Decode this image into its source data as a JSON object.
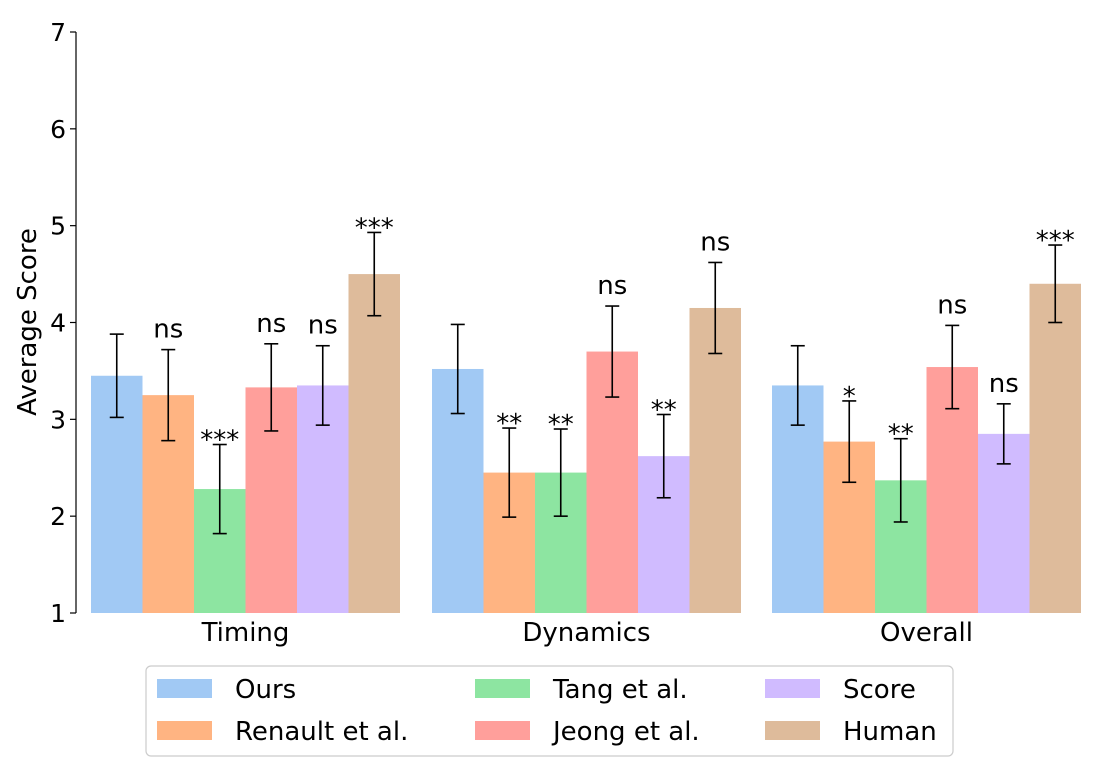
{
  "chart_data": {
    "type": "bar",
    "title": "",
    "xlabel": "",
    "ylabel": "Average Score",
    "ylim": [
      1,
      7
    ],
    "yticks": [
      "1",
      "2",
      "3",
      "4",
      "5",
      "6",
      "7"
    ],
    "grid": false,
    "legend_position": "bottom",
    "categories": [
      "Timing",
      "Dynamics",
      "Overall"
    ],
    "series": [
      {
        "name": "Ours",
        "color": "#a1c9f4",
        "values": [
          3.45,
          3.52,
          3.35
        ],
        "err": [
          0.43,
          0.46,
          0.41
        ],
        "sig": [
          "",
          "",
          ""
        ]
      },
      {
        "name": "Renault et al.",
        "color": "#ffb482",
        "values": [
          3.25,
          2.45,
          2.77
        ],
        "err": [
          0.47,
          0.46,
          0.42
        ],
        "sig": [
          "ns",
          "**",
          "*"
        ]
      },
      {
        "name": "Tang et al.",
        "color": "#8de5a1",
        "values": [
          2.28,
          2.45,
          2.37
        ],
        "err": [
          0.46,
          0.45,
          0.43
        ],
        "sig": [
          "***",
          "**",
          "**"
        ]
      },
      {
        "name": "Jeong et al.",
        "color": "#ff9f9b",
        "values": [
          3.33,
          3.7,
          3.54
        ],
        "err": [
          0.45,
          0.47,
          0.43
        ],
        "sig": [
          "ns",
          "ns",
          "ns"
        ]
      },
      {
        "name": "Score",
        "color": "#d0bbff",
        "values": [
          3.35,
          2.62,
          2.85
        ],
        "err": [
          0.41,
          0.43,
          0.31
        ],
        "sig": [
          "ns",
          "**",
          "ns"
        ]
      },
      {
        "name": "Human",
        "color": "#debb9b",
        "values": [
          4.5,
          4.15,
          4.4
        ],
        "err": [
          0.43,
          0.47,
          0.4
        ],
        "sig": [
          "***",
          "ns",
          "***"
        ]
      }
    ]
  }
}
